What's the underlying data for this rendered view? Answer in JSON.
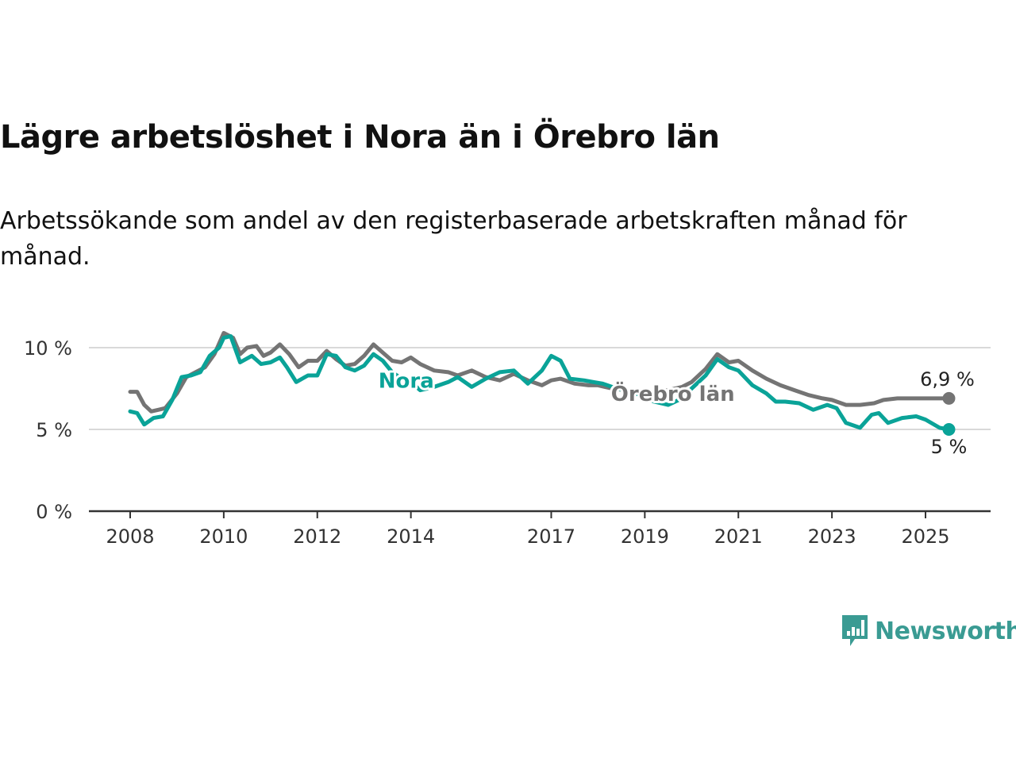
{
  "title": "Lägre arbetslöshet i Nora än i Örebro län",
  "subtitle": "Arbetssökande som andel av den registerbaserade arbetskraften månad för månad.",
  "brand": {
    "name": "Newsworthy",
    "icon": "newsworthy-chart-bubble-icon",
    "color": "#3a9b93"
  },
  "colors": {
    "nora": "#0aa398",
    "orebro": "#747474",
    "grid": "#d9d9d9",
    "axis": "#333333"
  },
  "chart_data": {
    "type": "line",
    "title": "Lägre arbetslöshet i Nora än i Örebro län",
    "subtitle": "Arbetssökande som andel av den registerbaserade arbetskraften månad för månad.",
    "xlabel": "",
    "ylabel": "",
    "xlim": [
      2007.5,
      2026.3
    ],
    "ylim": [
      0,
      10
    ],
    "x_ticks": [
      2008,
      2010,
      2012,
      2014,
      2017,
      2019,
      2021,
      2023,
      2025
    ],
    "x_tick_labels": [
      "2008",
      "2010",
      "2012",
      "2014",
      "2017",
      "2019",
      "2021",
      "2023",
      "2025"
    ],
    "y_ticks": [
      0,
      5,
      10
    ],
    "y_tick_labels": [
      "0 %",
      "5 %",
      "10 %"
    ],
    "grid": true,
    "series": [
      {
        "name": "Örebro län",
        "color": "#747474",
        "end_label": "6,9 %",
        "points": [
          [
            2008.0,
            7.3
          ],
          [
            2008.15,
            7.3
          ],
          [
            2008.3,
            6.5
          ],
          [
            2008.45,
            6.1
          ],
          [
            2008.6,
            6.2
          ],
          [
            2008.75,
            6.3
          ],
          [
            2009.0,
            7.2
          ],
          [
            2009.2,
            8.2
          ],
          [
            2009.4,
            8.5
          ],
          [
            2009.6,
            8.8
          ],
          [
            2009.8,
            9.6
          ],
          [
            2010.0,
            10.9
          ],
          [
            2010.2,
            10.6
          ],
          [
            2010.35,
            9.6
          ],
          [
            2010.5,
            10.0
          ],
          [
            2010.7,
            10.1
          ],
          [
            2010.85,
            9.5
          ],
          [
            2011.0,
            9.7
          ],
          [
            2011.2,
            10.2
          ],
          [
            2011.4,
            9.6
          ],
          [
            2011.6,
            8.8
          ],
          [
            2011.8,
            9.2
          ],
          [
            2012.0,
            9.2
          ],
          [
            2012.2,
            9.8
          ],
          [
            2012.4,
            9.3
          ],
          [
            2012.6,
            8.9
          ],
          [
            2012.8,
            9.0
          ],
          [
            2013.0,
            9.5
          ],
          [
            2013.2,
            10.2
          ],
          [
            2013.4,
            9.7
          ],
          [
            2013.6,
            9.2
          ],
          [
            2013.8,
            9.1
          ],
          [
            2014.0,
            9.4
          ],
          [
            2014.2,
            9.0
          ],
          [
            2014.5,
            8.6
          ],
          [
            2014.8,
            8.5
          ],
          [
            2015.0,
            8.3
          ],
          [
            2015.3,
            8.6
          ],
          [
            2015.6,
            8.2
          ],
          [
            2015.9,
            8.0
          ],
          [
            2016.2,
            8.4
          ],
          [
            2016.5,
            8.0
          ],
          [
            2016.8,
            7.7
          ],
          [
            2017.0,
            8.0
          ],
          [
            2017.2,
            8.1
          ],
          [
            2017.5,
            7.8
          ],
          [
            2017.8,
            7.7
          ],
          [
            2018.0,
            7.7
          ],
          [
            2018.3,
            7.5
          ],
          [
            2018.6,
            7.4
          ],
          [
            2018.9,
            7.2
          ],
          [
            2019.2,
            7.3
          ],
          [
            2019.5,
            7.4
          ],
          [
            2019.8,
            7.6
          ],
          [
            2020.0,
            7.9
          ],
          [
            2020.3,
            8.7
          ],
          [
            2020.55,
            9.6
          ],
          [
            2020.8,
            9.1
          ],
          [
            2021.0,
            9.2
          ],
          [
            2021.3,
            8.6
          ],
          [
            2021.6,
            8.1
          ],
          [
            2021.9,
            7.7
          ],
          [
            2022.2,
            7.4
          ],
          [
            2022.5,
            7.1
          ],
          [
            2022.8,
            6.9
          ],
          [
            2023.0,
            6.8
          ],
          [
            2023.3,
            6.5
          ],
          [
            2023.6,
            6.5
          ],
          [
            2023.9,
            6.6
          ],
          [
            2024.1,
            6.8
          ],
          [
            2024.4,
            6.9
          ],
          [
            2024.7,
            6.9
          ],
          [
            2025.0,
            6.9
          ],
          [
            2025.3,
            6.9
          ],
          [
            2025.5,
            6.9
          ]
        ]
      },
      {
        "name": "Nora",
        "color": "#0aa398",
        "end_label": "5 %",
        "points": [
          [
            2008.0,
            6.1
          ],
          [
            2008.15,
            6.0
          ],
          [
            2008.3,
            5.3
          ],
          [
            2008.5,
            5.7
          ],
          [
            2008.7,
            5.8
          ],
          [
            2008.9,
            6.8
          ],
          [
            2009.1,
            8.2
          ],
          [
            2009.3,
            8.3
          ],
          [
            2009.5,
            8.5
          ],
          [
            2009.7,
            9.5
          ],
          [
            2009.9,
            10.0
          ],
          [
            2010.0,
            10.6
          ],
          [
            2010.15,
            10.7
          ],
          [
            2010.35,
            9.1
          ],
          [
            2010.6,
            9.5
          ],
          [
            2010.8,
            9.0
          ],
          [
            2011.0,
            9.1
          ],
          [
            2011.2,
            9.4
          ],
          [
            2011.35,
            8.8
          ],
          [
            2011.55,
            7.9
          ],
          [
            2011.8,
            8.3
          ],
          [
            2012.0,
            8.3
          ],
          [
            2012.2,
            9.6
          ],
          [
            2012.4,
            9.5
          ],
          [
            2012.6,
            8.8
          ],
          [
            2012.8,
            8.6
          ],
          [
            2013.0,
            8.9
          ],
          [
            2013.2,
            9.6
          ],
          [
            2013.4,
            9.2
          ],
          [
            2013.6,
            8.5
          ],
          [
            2013.8,
            8.1
          ],
          [
            2014.0,
            7.9
          ],
          [
            2014.2,
            7.4
          ],
          [
            2014.5,
            7.6
          ],
          [
            2014.8,
            7.9
          ],
          [
            2015.0,
            8.2
          ],
          [
            2015.3,
            7.6
          ],
          [
            2015.6,
            8.1
          ],
          [
            2015.9,
            8.5
          ],
          [
            2016.2,
            8.6
          ],
          [
            2016.5,
            7.8
          ],
          [
            2016.8,
            8.6
          ],
          [
            2017.0,
            9.5
          ],
          [
            2017.2,
            9.2
          ],
          [
            2017.4,
            8.1
          ],
          [
            2017.7,
            8.0
          ],
          [
            2017.9,
            7.9
          ],
          [
            2018.1,
            7.8
          ],
          [
            2018.4,
            7.5
          ],
          [
            2018.7,
            7.3
          ],
          [
            2019.0,
            7.0
          ],
          [
            2019.2,
            6.7
          ],
          [
            2019.5,
            6.5
          ],
          [
            2019.8,
            6.9
          ],
          [
            2020.0,
            7.5
          ],
          [
            2020.3,
            8.3
          ],
          [
            2020.55,
            9.3
          ],
          [
            2020.8,
            8.8
          ],
          [
            2021.0,
            8.6
          ],
          [
            2021.3,
            7.7
          ],
          [
            2021.6,
            7.2
          ],
          [
            2021.8,
            6.7
          ],
          [
            2022.0,
            6.7
          ],
          [
            2022.3,
            6.6
          ],
          [
            2022.6,
            6.2
          ],
          [
            2022.9,
            6.5
          ],
          [
            2023.1,
            6.3
          ],
          [
            2023.3,
            5.4
          ],
          [
            2023.6,
            5.1
          ],
          [
            2023.85,
            5.9
          ],
          [
            2024.0,
            6.0
          ],
          [
            2024.2,
            5.4
          ],
          [
            2024.5,
            5.7
          ],
          [
            2024.8,
            5.8
          ],
          [
            2025.0,
            5.6
          ],
          [
            2025.3,
            5.1
          ],
          [
            2025.5,
            5.0
          ]
        ]
      }
    ]
  }
}
